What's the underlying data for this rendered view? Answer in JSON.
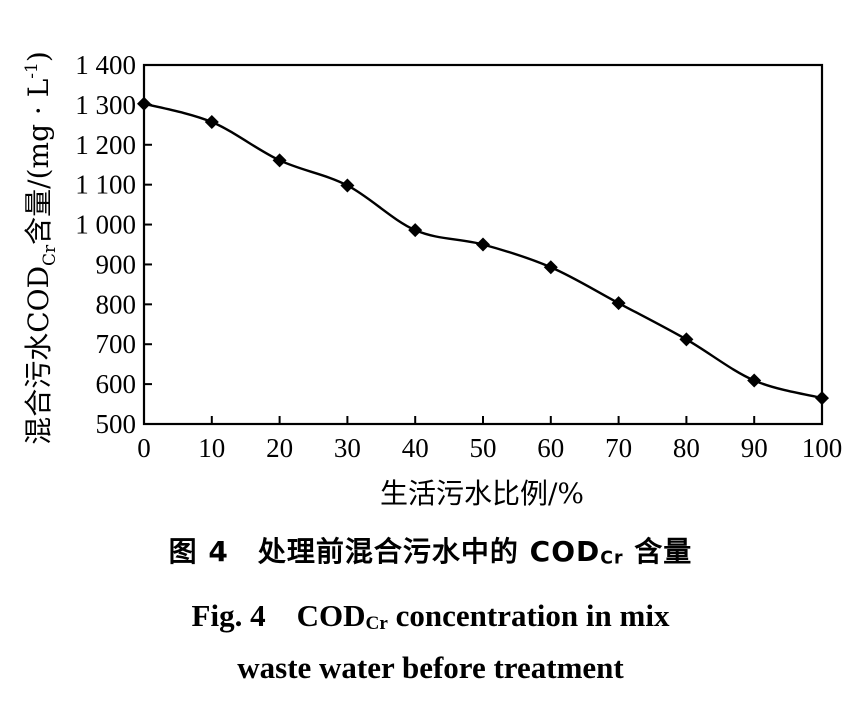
{
  "chart_data": {
    "type": "line",
    "x": [
      0,
      10,
      20,
      30,
      40,
      50,
      60,
      70,
      80,
      90,
      100
    ],
    "series": [
      {
        "values": [
          1303,
          1257,
          1161,
          1098,
          986,
          950,
          893,
          803,
          712,
          609,
          565
        ]
      }
    ],
    "xlabel": "生活污水比例/%",
    "ylabel_parts": {
      "pre": "混合污水COD",
      "sub": "Cr",
      "mid": "含量/(mg · L",
      "sup": "-1",
      "post": ")"
    },
    "xlim": [
      0,
      100
    ],
    "ylim": [
      500,
      1400
    ],
    "xticks": [
      0,
      10,
      20,
      30,
      40,
      50,
      60,
      70,
      80,
      90,
      100
    ],
    "xtick_labels": [
      "0",
      "10",
      "20",
      "30",
      "40",
      "50",
      "60",
      "70",
      "80",
      "90",
      "100"
    ],
    "yticks": [
      500,
      600,
      700,
      800,
      900,
      1000,
      1100,
      1200,
      1300,
      1400
    ],
    "ytick_labels": [
      "500",
      "600",
      "700",
      "800",
      "900",
      "1 000",
      "1 100",
      "1 200",
      "1 300",
      "1 400"
    ],
    "marker": "diamond",
    "line_style": "smooth",
    "grid": false,
    "colors": {
      "line": "#000000",
      "marker": "#000000",
      "axis": "#000000"
    }
  },
  "caption": {
    "cn_pre": "图 4　处理前混合污水中的 COD",
    "cn_sub": "Cr",
    "cn_post": " 含量",
    "en1_pre": "Fig. 4　COD",
    "en1_sub": "Cr",
    "en1_post": " concentration in mix",
    "en2": "waste water before treatment"
  }
}
